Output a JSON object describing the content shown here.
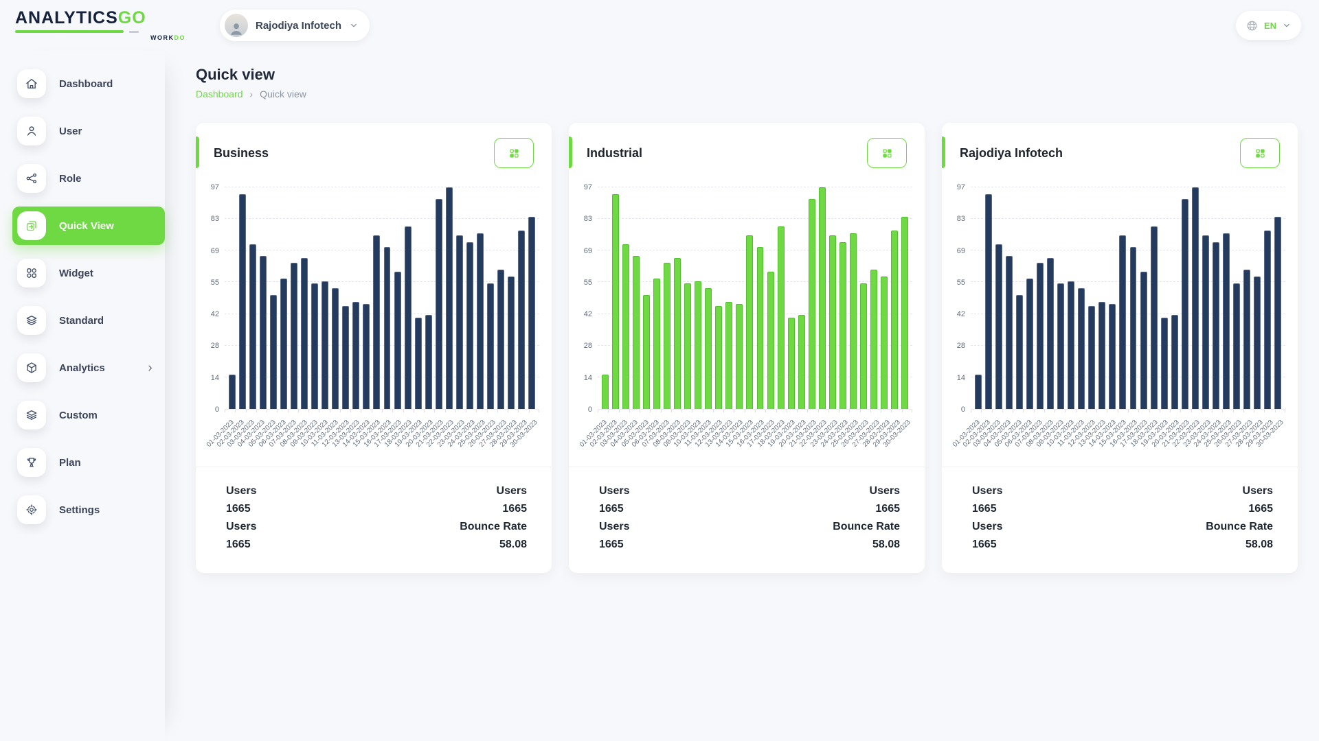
{
  "app": {
    "logo_primary": "ANALYTICS",
    "logo_accent": "GO",
    "logo_sub_primary": "WORK",
    "logo_sub_accent": "DO"
  },
  "header": {
    "workspace_name": "Rajodiya Infotech",
    "workspace_icon": "avatar",
    "workspace_caret": "chevron-down-icon",
    "language_code": "EN",
    "language_icon": "globe-icon",
    "language_caret": "chevron-down-icon"
  },
  "sidebar": {
    "items": [
      {
        "label": "Dashboard",
        "icon": "home-icon",
        "active": false,
        "has_submenu": false
      },
      {
        "label": "User",
        "icon": "user-icon",
        "active": false,
        "has_submenu": false
      },
      {
        "label": "Role",
        "icon": "share-icon",
        "active": false,
        "has_submenu": false
      },
      {
        "label": "Quick View",
        "icon": "quick-view-icon",
        "active": true,
        "has_submenu": false
      },
      {
        "label": "Widget",
        "icon": "widget-icon",
        "active": false,
        "has_submenu": false
      },
      {
        "label": "Standard",
        "icon": "layers-icon",
        "active": false,
        "has_submenu": false
      },
      {
        "label": "Analytics",
        "icon": "cube-icon",
        "active": false,
        "has_submenu": true
      },
      {
        "label": "Custom",
        "icon": "layers-icon",
        "active": false,
        "has_submenu": false
      },
      {
        "label": "Plan",
        "icon": "trophy-icon",
        "active": false,
        "has_submenu": false
      },
      {
        "label": "Settings",
        "icon": "gear-icon",
        "active": false,
        "has_submenu": false
      }
    ]
  },
  "page": {
    "title": "Quick view",
    "breadcrumb": [
      "Dashboard",
      "Quick view"
    ],
    "breadcrumb_separator": "›"
  },
  "cards": [
    {
      "title": "Business",
      "menu_icon": "grid-icon",
      "stats": [
        {
          "label": "Users",
          "value": "1665"
        },
        {
          "label": "Users",
          "value": "1665"
        },
        {
          "label": "Users",
          "value": "1665"
        },
        {
          "label": "Bounce Rate",
          "value": "58.08"
        }
      ]
    },
    {
      "title": "Industrial",
      "menu_icon": "grid-icon",
      "stats": [
        {
          "label": "Users",
          "value": "1665"
        },
        {
          "label": "Users",
          "value": "1665"
        },
        {
          "label": "Users",
          "value": "1665"
        },
        {
          "label": "Bounce Rate",
          "value": "58.08"
        }
      ]
    },
    {
      "title": "Rajodiya Infotech",
      "menu_icon": "grid-icon",
      "stats": [
        {
          "label": "Users",
          "value": "1665"
        },
        {
          "label": "Users",
          "value": "1665"
        },
        {
          "label": "Users",
          "value": "1665"
        },
        {
          "label": "Bounce Rate",
          "value": "58.08"
        }
      ]
    }
  ],
  "chart_data": [
    {
      "type": "bar",
      "title": "Business",
      "xlabel": "",
      "ylabel": "",
      "ylim": [
        0,
        97
      ],
      "yticks": [
        0,
        14,
        28,
        42,
        55,
        69,
        83,
        97
      ],
      "grid": "horizontal-dashed",
      "legend": "none",
      "bar_color": "#253b5e",
      "bar_border": "#5a6b8a",
      "categories": [
        "01-03-2023",
        "02-03-2023",
        "03-03-2023",
        "04-03-2023",
        "05-03-2023",
        "06-03-2023",
        "07-03-2023",
        "08-03-2023",
        "09-03-2023",
        "10-03-2023",
        "11-03-2023",
        "12-03-2023",
        "13-03-2023",
        "14-03-2023",
        "15-03-2023",
        "16-03-2023",
        "17-03-2023",
        "18-03-2023",
        "19-03-2023",
        "20-03-2023",
        "21-03-2023",
        "22-03-2023",
        "23-03-2023",
        "24-03-2023",
        "25-03-2023",
        "26-03-2023",
        "27-03-2023",
        "28-03-2023",
        "29-03-2023",
        "30-03-2023"
      ],
      "values": [
        15,
        94,
        72,
        67,
        50,
        57,
        64,
        66,
        55,
        56,
        53,
        45,
        47,
        46,
        76,
        71,
        60,
        80,
        40,
        41,
        92,
        97,
        76,
        73,
        77,
        55,
        61,
        58,
        78,
        84
      ]
    },
    {
      "type": "bar",
      "title": "Industrial",
      "xlabel": "",
      "ylabel": "",
      "ylim": [
        0,
        97
      ],
      "yticks": [
        0,
        14,
        28,
        42,
        55,
        69,
        83,
        97
      ],
      "grid": "horizontal-dashed",
      "legend": "none",
      "bar_color": "#6fd943",
      "bar_border": "#55bd31",
      "categories": [
        "01-03-2023",
        "02-03-2023",
        "03-03-2023",
        "04-03-2023",
        "05-03-2023",
        "06-03-2023",
        "07-03-2023",
        "08-03-2023",
        "09-03-2023",
        "10-03-2023",
        "11-03-2023",
        "12-03-2023",
        "13-03-2023",
        "14-03-2023",
        "15-03-2023",
        "16-03-2023",
        "17-03-2023",
        "18-03-2023",
        "19-03-2023",
        "20-03-2023",
        "21-03-2023",
        "22-03-2023",
        "23-03-2023",
        "24-03-2023",
        "25-03-2023",
        "26-03-2023",
        "27-03-2023",
        "28-03-2023",
        "29-03-2023",
        "30-03-2023"
      ],
      "values": [
        15,
        94,
        72,
        67,
        50,
        57,
        64,
        66,
        55,
        56,
        53,
        45,
        47,
        46,
        76,
        71,
        60,
        80,
        40,
        41,
        92,
        97,
        76,
        73,
        77,
        55,
        61,
        58,
        78,
        84
      ]
    },
    {
      "type": "bar",
      "title": "Rajodiya Infotech",
      "xlabel": "",
      "ylabel": "",
      "ylim": [
        0,
        97
      ],
      "yticks": [
        0,
        14,
        28,
        42,
        55,
        69,
        83,
        97
      ],
      "grid": "horizontal-dashed",
      "legend": "none",
      "bar_color": "#253b5e",
      "bar_border": "#5a6b8a",
      "categories": [
        "01-03-2023",
        "02-03-2023",
        "03-03-2023",
        "04-03-2023",
        "05-03-2023",
        "06-03-2023",
        "07-03-2023",
        "08-03-2023",
        "09-03-2023",
        "10-03-2023",
        "11-03-2023",
        "12-03-2023",
        "13-03-2023",
        "14-03-2023",
        "15-03-2023",
        "16-03-2023",
        "17-03-2023",
        "18-03-2023",
        "19-03-2023",
        "20-03-2023",
        "21-03-2023",
        "22-03-2023",
        "23-03-2023",
        "24-03-2023",
        "25-03-2023",
        "26-03-2023",
        "27-03-2023",
        "28-03-2023",
        "29-03-2023",
        "30-03-2023"
      ],
      "values": [
        15,
        94,
        72,
        67,
        50,
        57,
        64,
        66,
        55,
        56,
        53,
        45,
        47,
        46,
        76,
        71,
        60,
        80,
        40,
        41,
        92,
        97,
        76,
        73,
        77,
        55,
        61,
        58,
        78,
        84
      ]
    }
  ],
  "colors": {
    "accent_green": "#6fd943",
    "navy_bar": "#253b5e",
    "green_bar": "#6fd943",
    "page_bg": "#f7f8fb",
    "text_dark": "#232b3a",
    "text_muted": "#8a94a4"
  }
}
